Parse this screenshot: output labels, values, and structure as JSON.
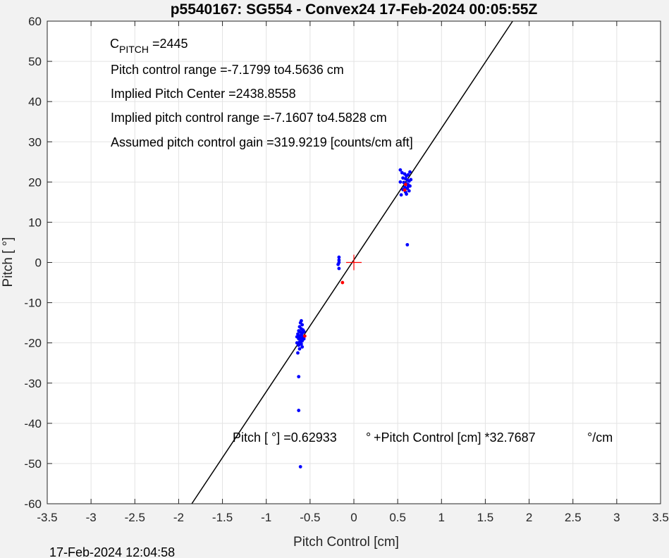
{
  "chart_data": {
    "type": "scatter",
    "title": "p5540167: SG554 - Convex24 17-Feb-2024 00:05:55Z",
    "xlabel": "Pitch Control [cm]",
    "ylabel": "Pitch [ °]",
    "xlim": [
      -3.5,
      3.5
    ],
    "ylim": [
      -60,
      60
    ],
    "xticks": [
      -3.5,
      -3,
      -2.5,
      -2,
      -1.5,
      -1,
      -0.5,
      0,
      0.5,
      1,
      1.5,
      2,
      2.5,
      3,
      3.5
    ],
    "xtick_labels": [
      "-3.5",
      "-3",
      "-2.5",
      "-2",
      "-1.5",
      "-1",
      "-0.5",
      "0",
      "0.5",
      "1",
      "1.5",
      "2",
      "2.5",
      "3",
      "3.5"
    ],
    "yticks": [
      -60,
      -50,
      -40,
      -30,
      -20,
      -10,
      0,
      10,
      20,
      30,
      40,
      50,
      60
    ],
    "ytick_labels": [
      "-60",
      "-50",
      "-40",
      "-30",
      "-20",
      "-10",
      "0",
      "10",
      "20",
      "30",
      "40",
      "50",
      "60"
    ],
    "grid": true,
    "fit_line": {
      "intercept": 0.62933,
      "slope": 32.7687,
      "color": "#000000"
    },
    "center_marker": {
      "x": 0,
      "y": 0,
      "color": "#ff0000"
    },
    "series": [
      {
        "color": "#0000ff",
        "points": [
          [
            -0.6,
            -14.5
          ],
          [
            -0.61,
            -15.0
          ],
          [
            -0.59,
            -15.5
          ],
          [
            -0.62,
            -16.0
          ],
          [
            -0.6,
            -16.5
          ],
          [
            -0.58,
            -16.8
          ],
          [
            -0.63,
            -17.0
          ],
          [
            -0.61,
            -17.3
          ],
          [
            -0.59,
            -17.6
          ],
          [
            -0.64,
            -17.8
          ],
          [
            -0.6,
            -18.0
          ],
          [
            -0.62,
            -18.3
          ],
          [
            -0.58,
            -18.5
          ],
          [
            -0.61,
            -18.8
          ],
          [
            -0.63,
            -19.0
          ],
          [
            -0.6,
            -19.2
          ],
          [
            -0.59,
            -19.5
          ],
          [
            -0.62,
            -19.8
          ],
          [
            -0.61,
            -20.0
          ],
          [
            -0.6,
            -20.3
          ],
          [
            -0.63,
            -20.6
          ],
          [
            -0.59,
            -21.0
          ],
          [
            -0.62,
            -21.5
          ],
          [
            -0.64,
            -22.5
          ],
          [
            -0.57,
            -17.2
          ],
          [
            -0.57,
            -19.0
          ],
          [
            -0.65,
            -18.5
          ],
          [
            -0.65,
            -20.0
          ],
          [
            -0.63,
            -28.4
          ],
          [
            -0.63,
            -36.8
          ],
          [
            -0.61,
            -50.8
          ],
          [
            -0.17,
            1.3
          ],
          [
            -0.17,
            0.6
          ],
          [
            -0.17,
            0.0
          ],
          [
            -0.18,
            -0.5
          ],
          [
            -0.17,
            -1.5
          ],
          [
            0.53,
            23.0
          ],
          [
            0.55,
            22.3
          ],
          [
            0.58,
            22.0
          ],
          [
            0.6,
            21.5
          ],
          [
            0.62,
            21.8
          ],
          [
            0.64,
            22.5
          ],
          [
            0.56,
            21.0
          ],
          [
            0.59,
            20.8
          ],
          [
            0.61,
            20.5
          ],
          [
            0.63,
            20.2
          ],
          [
            0.53,
            20.0
          ],
          [
            0.57,
            19.9
          ],
          [
            0.6,
            19.6
          ],
          [
            0.62,
            19.3
          ],
          [
            0.64,
            19.0
          ],
          [
            0.58,
            18.7
          ],
          [
            0.61,
            18.4
          ],
          [
            0.56,
            18.1
          ],
          [
            0.63,
            17.8
          ],
          [
            0.59,
            17.5
          ],
          [
            0.6,
            17.0
          ],
          [
            0.54,
            16.8
          ],
          [
            0.62,
            18.9
          ],
          [
            0.65,
            20.6
          ],
          [
            0.61,
            4.4
          ]
        ]
      },
      {
        "color": "#ff0000",
        "points": [
          [
            -0.13,
            -5.0
          ],
          [
            -0.56,
            -18.3
          ],
          [
            0.58,
            18.0
          ],
          [
            0.59,
            19.4
          ]
        ]
      }
    ],
    "annotations": {
      "c_pitch_base": "C",
      "c_pitch_sub": "PITCH",
      "c_pitch_value": " =2445",
      "line1": "Pitch control range =-7.1799 to4.5636 cm",
      "line2": "Implied Pitch Center =2438.8558",
      "line3": "Implied pitch control range =-7.1607 to4.5828 cm",
      "line4": "Assumed pitch control gain =319.9219 [counts/cm aft]",
      "equation_part1": "Pitch [  °] =0.62933",
      "equation_part2": "°",
      "equation_part3": " +Pitch Control [cm] *32.7687",
      "equation_part4": "°/cm"
    },
    "footer": "17-Feb-2024 12:04:58"
  }
}
